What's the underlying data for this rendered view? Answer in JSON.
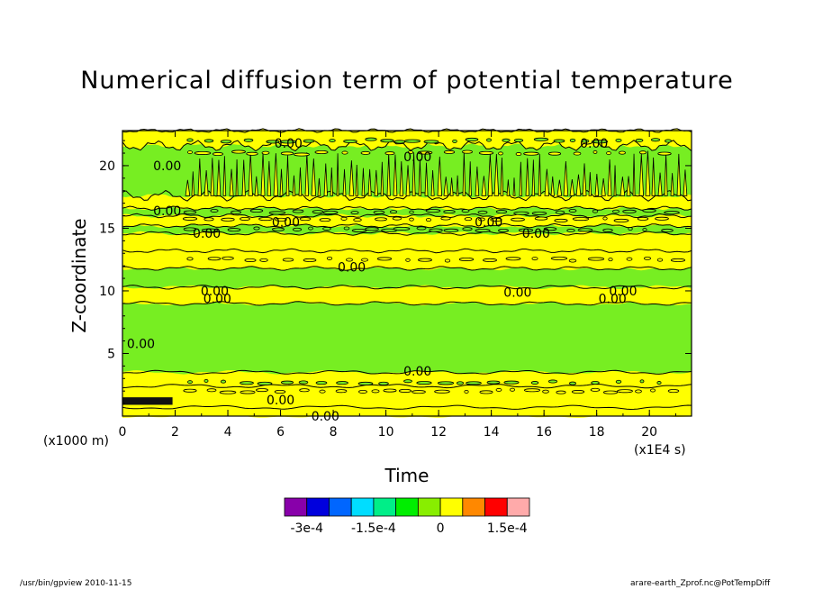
{
  "chart_data": {
    "type": "heatmap",
    "title": "Numerical diffusion term of potential temperature",
    "xlabel": "Time",
    "ylabel": "Z-coordinate",
    "x_unit_label": "(x1E4 s)",
    "y_unit_label": "(x1000 m)",
    "xlim": [
      0,
      21.6
    ],
    "ylim": [
      0,
      22.8
    ],
    "x_ticks": [
      0,
      2,
      4,
      6,
      8,
      10,
      12,
      14,
      16,
      18,
      20
    ],
    "y_ticks": [
      5,
      10,
      15,
      20
    ],
    "contour_labels": [
      "0.00",
      "0.00",
      "0.00",
      "0.00",
      "0.00",
      "0.00",
      "0.00",
      "0.00",
      "0.00",
      "0.00",
      "0.00",
      "0.00",
      "0.00",
      "0.00",
      "0.00",
      "0.00",
      "0.00",
      "0.00",
      "0.00"
    ],
    "bands": [
      {
        "z0": 0.0,
        "z1": 0.7,
        "level": "yellow"
      },
      {
        "z0": 0.7,
        "z1": 2.4,
        "level": "yellow"
      },
      {
        "z0": 2.4,
        "z1": 3.5,
        "level": "yellow"
      },
      {
        "z0": 3.5,
        "z1": 9.0,
        "level": "green"
      },
      {
        "z0": 9.0,
        "z1": 10.3,
        "level": "yellow"
      },
      {
        "z0": 10.3,
        "z1": 11.8,
        "level": "green"
      },
      {
        "z0": 11.8,
        "z1": 13.2,
        "level": "yellow"
      },
      {
        "z0": 13.2,
        "z1": 14.6,
        "level": "yellow"
      },
      {
        "z0": 14.6,
        "z1": 15.2,
        "level": "green"
      },
      {
        "z0": 15.2,
        "z1": 16.0,
        "level": "yellow"
      },
      {
        "z0": 16.0,
        "z1": 16.6,
        "level": "green"
      },
      {
        "z0": 16.6,
        "z1": 17.6,
        "level": "yellow"
      },
      {
        "z0": 17.6,
        "z1": 21.6,
        "level": "green"
      },
      {
        "z0": 21.6,
        "z1": 22.8,
        "level": "yellow"
      }
    ],
    "colorbar": {
      "colors": [
        "#8800aa",
        "#0000dd",
        "#0066ff",
        "#00ddff",
        "#00ee88",
        "#00ee00",
        "#88ee00",
        "#ffff00",
        "#ff8800",
        "#ff0000",
        "#ffaaaa"
      ],
      "tick_labels": [
        "-3e-4",
        "-1.5e-4",
        "0",
        "1.5e-4"
      ]
    },
    "colors": {
      "yellow": "#ffff00",
      "green": "#77ee22",
      "contour": "#000000"
    }
  },
  "footer": {
    "left": "/usr/bin/gpview   2010-11-15",
    "right": "arare-earth_Zprof.nc@PotTempDiff"
  }
}
